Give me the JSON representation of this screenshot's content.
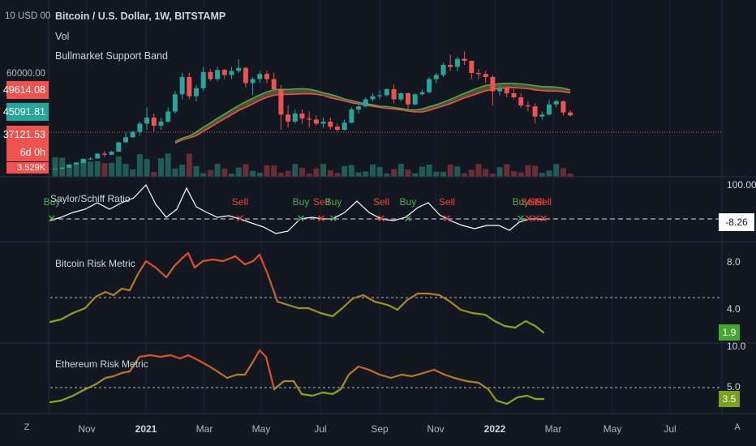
{
  "header": {
    "title": "Bitcoin / U.S. Dollar, 1W, BITSTAMP",
    "indicators": [
      "Vol",
      "Bullmarket Support Band"
    ],
    "currency_label": "10 USD 00"
  },
  "price_axis": {
    "tick_label": "60000.00",
    "tags": [
      {
        "text": "49614.08",
        "color": "#ef5350"
      },
      {
        "text": "45091.81",
        "color": "#26a69a"
      },
      {
        "text": "37121.53",
        "color": "#ef5350"
      },
      {
        "text": "6d 0h",
        "color": "#ef5350"
      },
      {
        "text": "3.529K",
        "color": "#ef5350"
      }
    ]
  },
  "panels": {
    "saylor": {
      "title": "Saylor/Schiff Ratio",
      "axis_top": "100.00",
      "value": "-8.26",
      "signals": [
        {
          "text": "Buy",
          "type": "buy"
        },
        {
          "text": "Sell",
          "type": "sell"
        },
        {
          "text": "Buy",
          "type": "buy"
        },
        {
          "text": "Sell",
          "type": "sell"
        },
        {
          "text": "Buy",
          "type": "buy"
        },
        {
          "text": "Sell",
          "type": "sell"
        },
        {
          "text": "Buy",
          "type": "buy"
        },
        {
          "text": "Sell",
          "type": "sell"
        },
        {
          "text": "Buy",
          "type": "buy"
        },
        {
          "text": "Sell",
          "type": "sell"
        },
        {
          "text": "Sell",
          "type": "sell"
        },
        {
          "text": "Sell",
          "type": "sell"
        }
      ]
    },
    "btc_risk": {
      "title": "Bitcoin Risk Metric",
      "axis_labels": [
        "8.0",
        "4.0"
      ],
      "value": "1.9"
    },
    "eth_risk": {
      "title": "Ethereum Risk Metric",
      "axis_labels": [
        "10.0",
        "5.0"
      ],
      "value": "3.5"
    }
  },
  "time_axis": {
    "labels": [
      "Nov",
      "2021",
      "Mar",
      "May",
      "Jul",
      "Sep",
      "Nov",
      "2022",
      "Mar",
      "May",
      "Jul"
    ],
    "bold": [
      false,
      true,
      false,
      false,
      false,
      false,
      false,
      true,
      false,
      false,
      false
    ]
  },
  "controls": {
    "left_button": "Z",
    "right_button": "A"
  },
  "colors": {
    "up": "#26a69a",
    "down": "#ef5350",
    "buy": "#4caf50",
    "sell": "#f44336",
    "band_green": "#4caf50",
    "band_red": "#ef5350",
    "risk_high": "#e8452c",
    "risk_low": "#7cb518"
  }
}
